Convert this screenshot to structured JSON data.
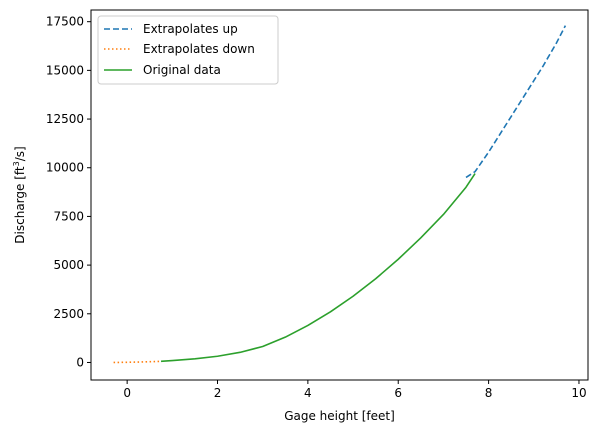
{
  "chart_data": {
    "type": "line",
    "title": "",
    "xlabel": "Gage height [feet]",
    "ylabel_parts": [
      "Discharge [ft",
      "3",
      "/s]"
    ],
    "xlim": [
      -0.8,
      10.2
    ],
    "ylim": [
      -900,
      18100
    ],
    "xticks": [
      0,
      2,
      4,
      6,
      8,
      10
    ],
    "xtick_labels": [
      "0",
      "2",
      "4",
      "6",
      "8",
      "10"
    ],
    "yticks": [
      0,
      2500,
      5000,
      7500,
      10000,
      12500,
      15000,
      17500
    ],
    "ytick_labels": [
      "0",
      "2500",
      "5000",
      "7500",
      "10000",
      "12500",
      "15000",
      "17500"
    ],
    "grid": false,
    "legend_position": "top-left",
    "series": [
      {
        "name": "Extrapolates up",
        "color": "#1f77b4",
        "dash": "dashed",
        "x": [
          7.5,
          7.7,
          8.0,
          8.3,
          8.6,
          8.9,
          9.2,
          9.5,
          9.7
        ],
        "y": [
          9500,
          9800,
          10800,
          11900,
          13000,
          14100,
          15200,
          16400,
          17300
        ]
      },
      {
        "name": "Extrapolates down",
        "color": "#ff7f0e",
        "dash": "dotted",
        "x": [
          -0.3,
          0.0,
          0.3,
          0.6,
          0.75
        ],
        "y": [
          0,
          10,
          25,
          45,
          60
        ]
      },
      {
        "name": "Original data",
        "color": "#2ca02c",
        "dash": "solid",
        "x": [
          0.75,
          1.0,
          1.5,
          2.0,
          2.5,
          3.0,
          3.5,
          4.0,
          4.5,
          5.0,
          5.5,
          6.0,
          6.5,
          7.0,
          7.5,
          7.7
        ],
        "y": [
          60,
          100,
          190,
          320,
          520,
          820,
          1300,
          1900,
          2600,
          3400,
          4300,
          5300,
          6400,
          7600,
          9000,
          9700
        ]
      }
    ]
  }
}
